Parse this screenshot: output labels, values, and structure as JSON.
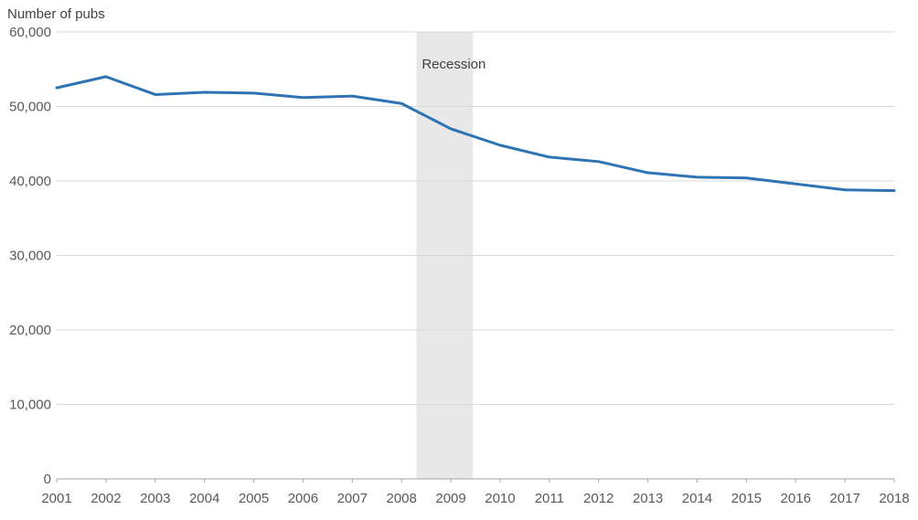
{
  "chart_data": {
    "type": "line",
    "title": "Number of pubs",
    "xlabel": "",
    "ylabel": "Number of pubs",
    "x": [
      2001,
      2002,
      2003,
      2004,
      2005,
      2006,
      2007,
      2008,
      2009,
      2010,
      2011,
      2012,
      2013,
      2014,
      2015,
      2016,
      2017,
      2018
    ],
    "series": [
      {
        "name": "Number of pubs",
        "values": [
          52500,
          54000,
          51600,
          51900,
          51800,
          51200,
          51400,
          50400,
          47000,
          44800,
          43200,
          42600,
          41100,
          40500,
          40400,
          39600,
          38800,
          38700
        ]
      }
    ],
    "ylim": [
      0,
      60000
    ],
    "ytick_step": 10000,
    "ytick_labels": [
      "0",
      "10,000",
      "20,000",
      "30,000",
      "40,000",
      "50,000",
      "60,000"
    ],
    "grid": "horizontal",
    "legend": "none",
    "annotations": [
      {
        "type": "band",
        "x_from": 2008.3,
        "x_to": 2009.45,
        "label": "Recession"
      }
    ],
    "colors": {
      "line": "#2e74b5",
      "band": "#e8e8e8",
      "grid": "#d9d9d9",
      "axis": "#a6a6a6",
      "tick_text": "#595959",
      "title_text": "#414042"
    }
  }
}
